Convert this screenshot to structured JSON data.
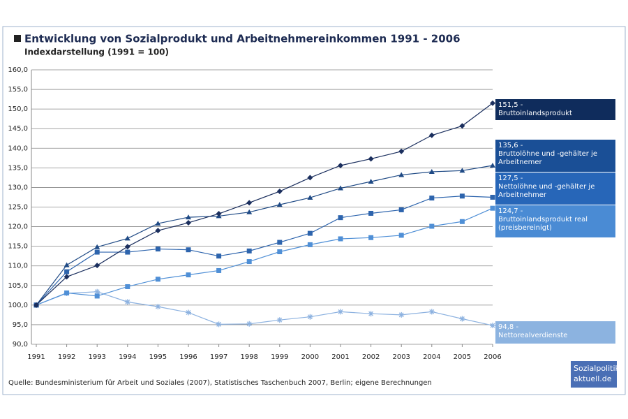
{
  "chart_data": {
    "type": "line",
    "title": "Entwicklung von Sozialprodukt und Arbeitnehmereinkommen 1991 - 2006",
    "subtitle": "Indexdarstellung (1991 = 100)",
    "source": "Quelle: Bundesministerium für Arbeit und Soziales (2007), Statistisches Taschenbuch 2007, Berlin; eigene Berechnungen",
    "logo": [
      "Sozialpolitik-",
      "aktuell.de"
    ],
    "x": [
      1991,
      1992,
      1993,
      1994,
      1995,
      1996,
      1997,
      1998,
      1999,
      2000,
      2001,
      2002,
      2003,
      2004,
      2005,
      2006
    ],
    "xlim": [
      1991,
      2006
    ],
    "xticks": [
      1991,
      1992,
      1993,
      1994,
      1995,
      1996,
      1997,
      1998,
      1999,
      2000,
      2001,
      2002,
      2003,
      2004,
      2005,
      2006
    ],
    "ylim": [
      90,
      160
    ],
    "yticks": [
      {
        "value": 90,
        "label": "90,0"
      },
      {
        "value": 95,
        "label": "95,0"
      },
      {
        "value": 100,
        "label": "100,0"
      },
      {
        "value": 105,
        "label": "105,0"
      },
      {
        "value": 110,
        "label": "110,0"
      },
      {
        "value": 115,
        "label": "115,0"
      },
      {
        "value": 120,
        "label": "120,0"
      },
      {
        "value": 125,
        "label": "125,0"
      },
      {
        "value": 130,
        "label": "130,0"
      },
      {
        "value": 135,
        "label": "135,0"
      },
      {
        "value": 140,
        "label": "140,0"
      },
      {
        "value": 145,
        "label": "145,0"
      },
      {
        "value": 150,
        "label": "150,0"
      },
      {
        "value": 155,
        "label": "155,0"
      },
      {
        "value": 160,
        "label": "160,0"
      }
    ],
    "grid": true,
    "series": [
      {
        "name": "Bruttoinlandsprodukt",
        "color": "#1b2f5e",
        "box_color": "#0f2c5c",
        "marker": "diamond",
        "values": [
          100,
          107.2,
          110.1,
          114.9,
          119,
          121,
          123.3,
          126.1,
          129,
          132.5,
          135.6,
          137.3,
          139.2,
          143.3,
          145.7,
          151.5
        ],
        "value_labels": [
          null,
          null,
          null,
          null,
          null,
          null,
          null,
          null,
          null,
          null,
          null,
          null,
          null,
          null,
          null,
          "151,5 -"
        ]
      },
      {
        "name": "Bruttolöhne und -gehälter je Arbeitnemer",
        "color": "#1f4a85",
        "box_color": "#1a4f96",
        "marker": "triangle",
        "values": [
          100,
          110.2,
          114.8,
          117,
          120.8,
          122.4,
          122.7,
          123.7,
          125.6,
          127.4,
          129.8,
          131.5,
          133.2,
          134,
          134.3,
          135.6
        ],
        "value_labels": [
          null,
          null,
          null,
          null,
          null,
          null,
          null,
          null,
          null,
          null,
          null,
          null,
          null,
          null,
          null,
          "135,6 -"
        ]
      },
      {
        "name": "Nettolöhne und -gehälter je Arbeitnehmer",
        "color": "#2d64ad",
        "box_color": "#2766b8",
        "marker": "square",
        "values": [
          100,
          108.5,
          113.5,
          113.5,
          114.3,
          114.1,
          112.5,
          113.8,
          116,
          118.3,
          122.3,
          123.4,
          124.3,
          127.3,
          127.8,
          127.5
        ],
        "value_labels": [
          null,
          null,
          null,
          null,
          null,
          null,
          null,
          null,
          null,
          null,
          null,
          null,
          null,
          null,
          null,
          "127,5 -"
        ]
      },
      {
        "name": "Bruttoinlandsprodukt real (preisbereinigt)",
        "color": "#4f8fd6",
        "box_color": "#4a8bd4",
        "marker": "square",
        "values": [
          100,
          103.1,
          102.3,
          104.7,
          106.6,
          107.7,
          108.8,
          111.1,
          113.6,
          115.4,
          116.9,
          117.2,
          117.8,
          120.1,
          121.3,
          124.7
        ],
        "value_labels": [
          null,
          null,
          null,
          null,
          null,
          null,
          null,
          null,
          null,
          null,
          null,
          null,
          null,
          null,
          null,
          "124,7 -"
        ]
      },
      {
        "name": "Nettorealverdienste",
        "color": "#8db2e0",
        "box_color": "#8cb3e0",
        "marker": "star",
        "values": [
          100,
          103,
          103.4,
          100.8,
          99.6,
          98.1,
          95.1,
          95.2,
          96.2,
          97,
          98.3,
          97.8,
          97.5,
          98.3,
          96.5,
          94.8
        ],
        "value_labels": [
          null,
          null,
          null,
          null,
          null,
          null,
          null,
          null,
          null,
          null,
          null,
          null,
          null,
          null,
          null,
          "94,8 -"
        ]
      }
    ]
  }
}
